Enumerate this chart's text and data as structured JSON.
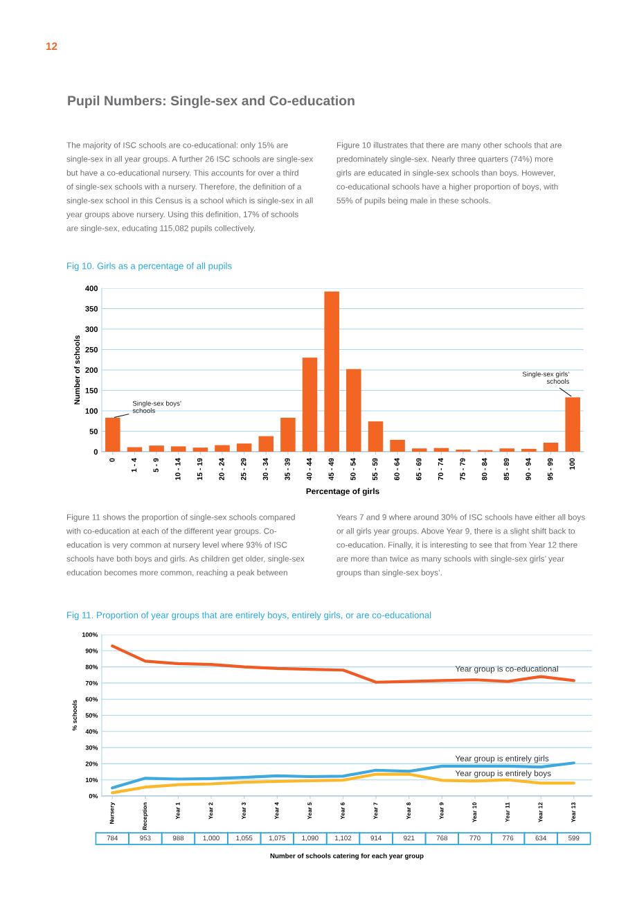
{
  "chart_data": [
    {
      "type": "bar",
      "title": "Pupil Numbers: Single-sex and Co-education",
      "subtitle": "Fig 10. Girls as a percentage of all pupils",
      "xlabel": "Percentage of girls",
      "ylabel": "Number of schools",
      "categories": [
        "0",
        "1 - 4",
        "5 - 9",
        "10 - 14",
        "15 - 19",
        "20 - 24",
        "25 - 29",
        "30 - 34",
        "35 - 39",
        "40 - 44",
        "45 - 49",
        "50 - 54",
        "55 - 59",
        "60 - 64",
        "65 - 69",
        "70 - 74",
        "75 - 79",
        "80 - 84",
        "85 - 89",
        "90 - 94",
        "95 - 99",
        "100"
      ],
      "values": [
        83,
        11,
        15,
        13,
        10,
        16,
        20,
        38,
        83,
        230,
        392,
        202,
        74,
        29,
        8,
        9,
        5,
        4,
        8,
        7,
        22,
        133
      ],
      "color": "#f26522",
      "ylim": [
        0,
        400
      ],
      "yticks": [
        0,
        50,
        100,
        150,
        200,
        250,
        300,
        350,
        400
      ],
      "grid": "y",
      "annotations": [
        "12",
        "The majority of ISC schools are co-educational: only 15% are\nsingle-sex in all year groups. A further 26 ISC schools are single-sex\nbut have a co-educational nursery. This accounts for over a third\nof single-sex schools with a nursery. Therefore, the definition of a\nsingle-sex school in this Census is a school which is single-sex in all\nyear groups above nursery. Using this definition, 17% of schools\nare single-sex, educating 115,082 pupils collectively.",
        "Figure 10 illustrates that there are many other schools that are\npredominately single-sex. Nearly three quarters (74%) more\ngirls are educated in single-sex schools than boys. However,\nco-educational schools have a higher proportion of boys, with\n55% of pupils being male in these schools.",
        {
          "text": "Single-sex boys’\nschools",
          "x": "0",
          "y": 83
        },
        {
          "text": "Single-sex girls’\nschools",
          "x": "100",
          "y": 133
        }
      ]
    },
    {
      "type": "line",
      "title": "Fig 11. Proportion of year groups that are entirely boys, entirely girls, or are co-educational",
      "xlabel": "Number of schools catering for each year group",
      "ylabel": "% schools",
      "categories": [
        "Nursery",
        "Reception",
        "Year 1",
        "Year 2",
        "Year 3",
        "Year 4",
        "Year 5",
        "Year 6",
        "Year 7",
        "Year 8",
        "Year 9",
        "Year 10",
        "Year 11",
        "Year 12",
        "Year 13"
      ],
      "series": [
        {
          "name": "Year group is co-educational",
          "color": "#f15a22",
          "values": [
            93,
            83.5,
            82,
            81.5,
            80,
            79,
            78.5,
            78,
            70.5,
            71,
            71.5,
            72,
            71,
            74,
            71.5
          ]
        },
        {
          "name": "Year group is entirely girls",
          "color": "#3fa9df",
          "values": [
            5,
            11,
            10.5,
            10.8,
            11.5,
            12.5,
            12,
            12.3,
            16,
            15.3,
            18.5,
            18.5,
            18.5,
            18,
            20.5
          ]
        },
        {
          "name": "Year group is entirely boys",
          "color": "#fbb829",
          "values": [
            2,
            5.5,
            7,
            7.5,
            8.5,
            9,
            9.5,
            9.8,
            13.5,
            13.5,
            9.7,
            9.3,
            10,
            8,
            8
          ]
        }
      ],
      "ylim": [
        0,
        100
      ],
      "yticks": [
        {
          "value": 0,
          "label": "0%"
        },
        {
          "value": 10,
          "label": "10%"
        },
        {
          "value": 20,
          "label": "20%"
        },
        {
          "value": 30,
          "label": "30%"
        },
        {
          "value": 40,
          "label": "40%"
        },
        {
          "value": 50,
          "label": "50%"
        },
        {
          "value": 60,
          "label": "60%"
        },
        {
          "value": 70,
          "label": "70%"
        },
        {
          "value": 80,
          "label": "80%"
        },
        {
          "value": 90,
          "label": "90%"
        },
        {
          "value": 100,
          "label": "100%"
        }
      ],
      "grid": "y",
      "legend": false,
      "marker": "none",
      "line_style": "solid",
      "annotations": [
        "Figure 11 shows the proportion of single-sex schools compared\nwith co-education at each of the different year groups. Co-\neducation is very common at nursery level where 93% of ISC\nschools have both boys and girls. As children get older, single-sex\neducation becomes more common, reaching a peak between",
        "Years 7 and 9 where around 30% of ISC schools have either all boys\nor all girls year groups. Above Year 9, there is a slight shift back to\nco-education. Finally, it is interesting to see that from Year 12 there\nare more than twice as many schools with single-sex girls’ year\ngroups than single-sex boys’.",
        "784",
        "953",
        "988",
        "1,000",
        "1,055",
        "1,075",
        "1,090",
        "1,102",
        "914",
        "921",
        "768",
        "770",
        "776",
        "634",
        "599"
      ]
    }
  ]
}
